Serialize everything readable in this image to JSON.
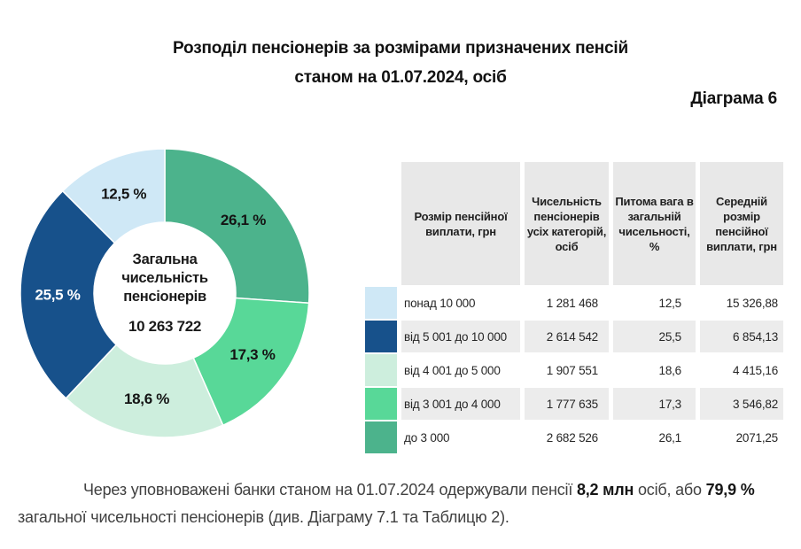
{
  "page": {
    "title_line1": "Розподіл пенсіонерів за розмірами призначених пенсій",
    "title_line2": "станом на 01.07.2024, осіб",
    "diagram_label": "Діаграма 6"
  },
  "chart_data": {
    "type": "pie",
    "donut": true,
    "title": "Розподіл пенсіонерів за розмірами призначених пенсій станом на 01.07.2024, осіб",
    "center_label": "Загальна чисельність пенсіонерів",
    "center_value": "10 263 722",
    "start_angle_deg": 0,
    "clockwise": true,
    "legend_position": "none",
    "segments": [
      {
        "category": "до 3 000",
        "value": 26.1,
        "display": "26,1 %",
        "color": "#4cb38c",
        "label_color": "#141414"
      },
      {
        "category": "від 3 001 до 4 000",
        "value": 17.3,
        "display": "17,3 %",
        "color": "#58d898",
        "label_color": "#141414"
      },
      {
        "category": "від 4 001 до 5 000",
        "value": 18.6,
        "display": "18,6 %",
        "color": "#cdeedd",
        "label_color": "#141414"
      },
      {
        "category": "від 5 001 до 10 000",
        "value": 25.5,
        "display": "25,5 %",
        "color": "#17518b",
        "label_color": "#ffffff"
      },
      {
        "category": "понад 10 000",
        "value": 12.5,
        "display": "12,5 %",
        "color": "#cfe8f6",
        "label_color": "#141414"
      }
    ]
  },
  "table": {
    "headers": [
      "Розмір пенсійної виплати, грн",
      "Чисельність пенсіонерів усіх категорій, осіб",
      "Питома вага в загальній чисельності, %",
      "Середній розмір пенсійної виплати, грн"
    ],
    "rows": [
      {
        "swatch_color": "#cfe8f6",
        "range": "понад 10 000",
        "count": "1 281 468",
        "share": "12,5",
        "avg": "15 326,88"
      },
      {
        "swatch_color": "#17518b",
        "range": "від 5 001 до 10 000",
        "count": "2 614 542",
        "share": "25,5",
        "avg": "6 854,13"
      },
      {
        "swatch_color": "#cdeedd",
        "range": "від 4 001 до 5 000",
        "count": "1 907 551",
        "share": "18,6",
        "avg": "4 415,16"
      },
      {
        "swatch_color": "#58d898",
        "range": "від 3 001 до 4 000",
        "count": "1 777 635",
        "share": "17,3",
        "avg": "3 546,82"
      },
      {
        "swatch_color": "#4cb38c",
        "range": "до 3 000",
        "count": "2 682 526",
        "share": "26,1",
        "avg": "2071,25"
      }
    ]
  },
  "footer": {
    "indent_text": "Через уповноважені банки станом на 01.07.2024 одержували пенсії ",
    "bold1": "8,2 млн",
    "mid_text": " осіб, або ",
    "bold2": "79,9 %",
    "tail_text": " загальної чисельності пенсіонерів (див. Діаграму 7.1 та Таблицю 2)."
  }
}
